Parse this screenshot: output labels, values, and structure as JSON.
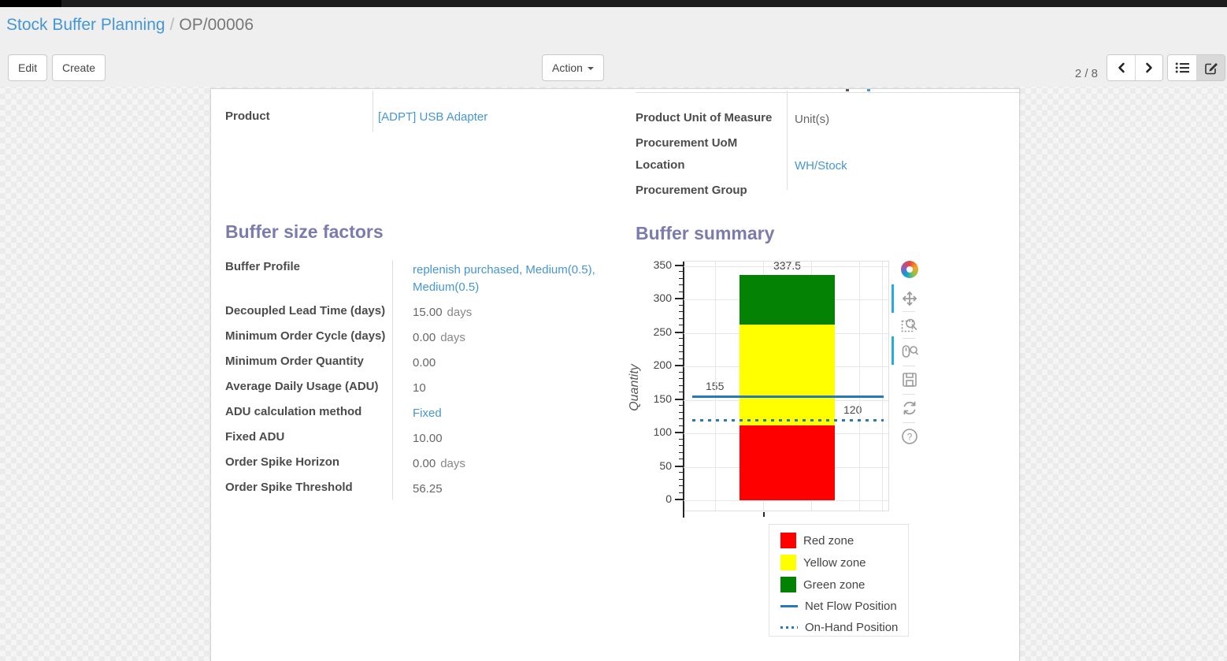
{
  "breadcrumb": {
    "parent": "Stock Buffer Planning",
    "separator": "/",
    "current": "OP/00006"
  },
  "toolbar": {
    "edit_label": "Edit",
    "create_label": "Create",
    "action_label": "Action",
    "pager_count": "2 / 8"
  },
  "form": {
    "left_group": {
      "product_label": "Product",
      "product_value": "[ADPT] USB Adapter"
    },
    "right_group": {
      "fields": [
        {
          "label": "Product Unit of Measure",
          "value": "Unit(s)"
        },
        {
          "label": "Procurement UoM",
          "value": ""
        },
        {
          "label": "Location",
          "value": "WH/Stock"
        },
        {
          "label": "Procurement Group",
          "value": ""
        }
      ]
    },
    "buffer_factors": {
      "title": "Buffer size factors",
      "fields": [
        {
          "label": "Buffer Profile",
          "value": "replenish purchased, Medium(0.5), Medium(0.5)"
        },
        {
          "label": "Decoupled Lead Time (days)",
          "value": "15.00",
          "suffix": "days"
        },
        {
          "label": "Minimum Order Cycle (days)",
          "value": "0.00",
          "suffix": "days"
        },
        {
          "label": "Minimum Order Quantity",
          "value": "0.00"
        },
        {
          "label": "Average Daily Usage (ADU)",
          "value": "10"
        },
        {
          "label": "ADU calculation method",
          "value": "Fixed"
        },
        {
          "label": "Fixed ADU",
          "value": "10.00"
        },
        {
          "label": "Order Spike Horizon",
          "value": "0.00",
          "suffix": "days"
        },
        {
          "label": "Order Spike Threshold",
          "value": "56.25"
        }
      ]
    },
    "buffer_summary": {
      "title": "Buffer summary"
    }
  },
  "chart_data": {
    "type": "bar",
    "title": "Buffer summary",
    "xlabel": "",
    "ylabel": "Quantity",
    "ylim": [
      0,
      350
    ],
    "yticks": [
      0,
      50,
      100,
      150,
      200,
      250,
      300,
      350
    ],
    "grid": true,
    "zones": [
      {
        "name": "Red zone",
        "from": 0,
        "to": 112.5,
        "color": "#fe0000"
      },
      {
        "name": "Yellow zone",
        "from": 112.5,
        "to": 262.5,
        "color": "#ffff00"
      },
      {
        "name": "Green zone",
        "from": 262.5,
        "to": 337.5,
        "color": "#048204"
      }
    ],
    "lines": [
      {
        "name": "Net Flow Position",
        "value": 155,
        "style": "solid",
        "color": "#2779b7"
      },
      {
        "name": "On-Hand Position",
        "value": 120,
        "style": "dotted",
        "color": "#2779b7"
      }
    ],
    "labels": {
      "bar_top": "337.5",
      "green_boundary": "262.5",
      "red_boundary": "112.5",
      "net_flow": "155",
      "on_hand": "120"
    },
    "legend": [
      "Red zone",
      "Yellow zone",
      "Green zone",
      "Net Flow Position",
      "On-Hand Position"
    ],
    "legend_position": "below"
  },
  "chart_toolbar": {
    "tools": [
      "bokeh-logo",
      "pan",
      "box-zoom",
      "wheel-zoom",
      "save",
      "reset",
      "help"
    ]
  }
}
